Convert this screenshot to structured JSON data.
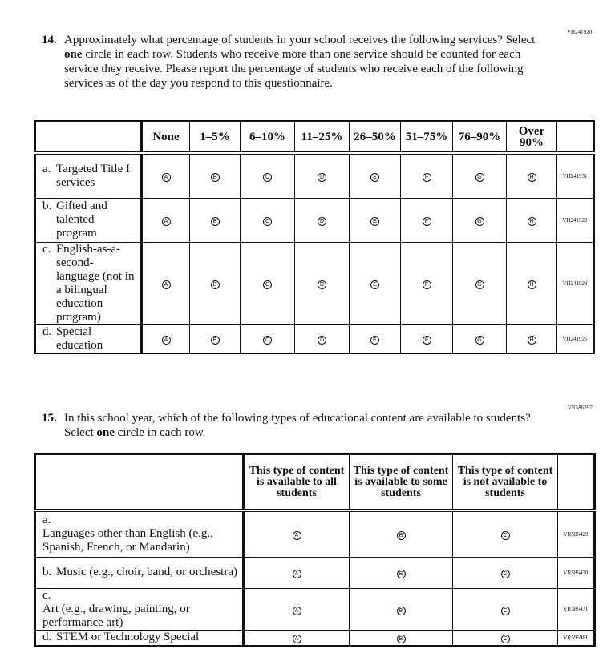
{
  "q14": {
    "code": "VH241920",
    "number": "14.",
    "text": "Approximately what percentage of students in your school receives the following services? Select one circle in each row. Students who receive more than one service should be counted for each service they receive. Please report the percentage of students who receive each of the following services as of the day you respond to this questionnaire.",
    "columns": [
      "None",
      "1–5%",
      "6–10%",
      "11–25%",
      "26–50%",
      "51–75%",
      "76–90%",
      "Over 90%"
    ],
    "bubbles": [
      "A",
      "B",
      "C",
      "D",
      "E",
      "F",
      "G",
      "H"
    ],
    "rows": [
      {
        "letter": "a.",
        "label": "Targeted Title I services",
        "code": "VH241931"
      },
      {
        "letter": "b.",
        "label": "Gifted and talented program",
        "code": "VH241922"
      },
      {
        "letter": "c.",
        "label": "English-as-a-second-language (not in a bilingual education program)",
        "code": "VH241924"
      },
      {
        "letter": "d.",
        "label": "Special education",
        "code": "VH241925"
      }
    ]
  },
  "q15": {
    "code": "VR586397",
    "number": "15.",
    "text": "In this school year, which of the following types of educational content are available to students? Select one circle in each row.",
    "columns": [
      "This type of content is available to all students",
      "This type of content is available to some students",
      "This type of content is not available to students"
    ],
    "bubbles": [
      "A",
      "B",
      "C"
    ],
    "rows": [
      {
        "letter": "a.",
        "label": "Languages other than English (e.g., Spanish, French, or Mandarin)",
        "code": "VR586429"
      },
      {
        "letter": "b.",
        "label": "Music (e.g., choir, band, or orchestra)",
        "code": "VR586430"
      },
      {
        "letter": "c.",
        "label": "Art (e.g., drawing, painting, or performance art)",
        "code": "VR586431"
      },
      {
        "letter": "d.",
        "label": "STEM or Technology Special",
        "code": "VR595981"
      }
    ]
  }
}
